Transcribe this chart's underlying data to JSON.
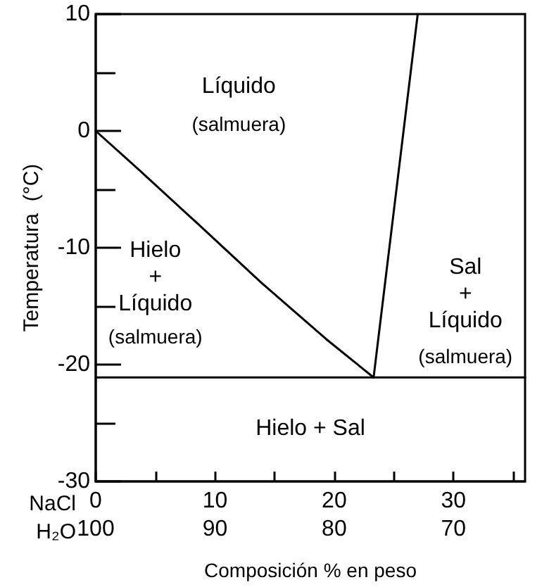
{
  "chart_data": {
    "type": "line",
    "xlabel": "Composición % en peso",
    "ylabel": "Temperatura  (°C)",
    "xlim": [
      0,
      36
    ],
    "xticks": [
      0,
      {
        "value": 5,
        "label": null
      },
      10,
      {
        "value": 15,
        "label": null
      },
      20,
      {
        "value": 25,
        "label": null
      },
      30,
      {
        "value": 35,
        "label": null
      }
    ],
    "x2lim": [
      100,
      64
    ],
    "x2ticks": [
      100,
      90,
      80,
      70
    ],
    "ylim": [
      -30,
      10
    ],
    "yticks": [
      -30,
      {
        "value": -25,
        "label": null
      },
      -20,
      {
        "value": -15,
        "label": null
      },
      -10,
      {
        "value": -5,
        "label": null
      },
      0,
      {
        "value": 5,
        "label": null
      },
      10
    ],
    "grid": false,
    "marker": "none",
    "line_style": "solid",
    "series": [
      {
        "color": "#000000",
        "x": [
          0,
          3.7,
          8.4,
          13.9,
          19.3,
          23.3
        ],
        "values": [
          0,
          -3.4,
          -7.8,
          -13.0,
          -17.8,
          -21.1
        ]
      },
      {
        "color": "#000000",
        "x": [
          23.3,
          27
        ],
        "values": [
          -21.1,
          10
        ]
      },
      {
        "color": "#000000",
        "x": [
          0,
          36
        ],
        "values": [
          -21.1,
          -21.1
        ]
      }
    ],
    "annotations": [
      "Líquido",
      "(salmuera)",
      "Hielo\n+\nLíquido",
      "(salmuera)",
      "Sal\n+\nLíquido",
      "(salmuera)",
      "Hielo + Sal",
      "NaCl",
      "H₂O"
    ]
  }
}
